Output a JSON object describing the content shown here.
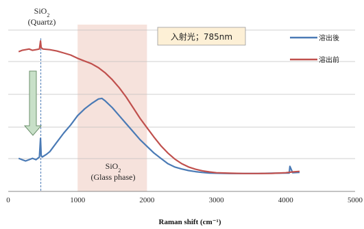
{
  "chart_data": {
    "type": "line",
    "xlabel": "Raman shift (cm⁻¹)",
    "xlim": [
      0,
      5000
    ],
    "x_ticks": [
      "0",
      "1000",
      "2000",
      "3000",
      "4000",
      "5000"
    ],
    "ylim": [
      0,
      1
    ],
    "grid": true,
    "legend_placement": "top-right",
    "excitation_label": "入射光；785nm",
    "annotations": {
      "quartz_top": "SiO",
      "quartz_sub": "2",
      "quartz_phase": "(Quartz)",
      "glass_top": "SiO",
      "glass_sub": "2",
      "glass_phase": "(Glass phase)"
    },
    "shaded_region": [
      1000,
      2000
    ],
    "quartz_line_x": 470,
    "colors": {
      "after": "#4a7ab5",
      "before": "#c0504d",
      "shade": "#f6e2dc",
      "box": "#fdf0d6",
      "arrow": "#c8e0c8"
    },
    "series": [
      {
        "name": "溶出後",
        "color": "#4a7ab5",
        "x": [
          150,
          200,
          250,
          300,
          350,
          400,
          450,
          465,
          475,
          490,
          550,
          600,
          700,
          800,
          900,
          1000,
          1100,
          1200,
          1300,
          1350,
          1400,
          1500,
          1600,
          1700,
          1800,
          1900,
          2000,
          2100,
          2200,
          2300,
          2400,
          2500,
          2600,
          2700,
          2800,
          2900,
          3000,
          3200,
          3400,
          3600,
          3800,
          4000,
          4050,
          4060,
          4100,
          4200
        ],
        "y": [
          0.12,
          0.11,
          0.1,
          0.11,
          0.12,
          0.11,
          0.13,
          0.27,
          0.14,
          0.13,
          0.15,
          0.17,
          0.24,
          0.31,
          0.37,
          0.44,
          0.49,
          0.53,
          0.565,
          0.57,
          0.55,
          0.5,
          0.44,
          0.38,
          0.32,
          0.26,
          0.21,
          0.16,
          0.12,
          0.08,
          0.055,
          0.04,
          0.028,
          0.02,
          0.014,
          0.01,
          0.008,
          0.006,
          0.006,
          0.006,
          0.008,
          0.01,
          0.01,
          0.06,
          0.012,
          0.015
        ]
      },
      {
        "name": "溶出前",
        "color": "#c0504d",
        "x": [
          150,
          200,
          250,
          300,
          350,
          400,
          450,
          465,
          475,
          500,
          600,
          700,
          800,
          900,
          1000,
          1100,
          1200,
          1300,
          1400,
          1500,
          1600,
          1700,
          1800,
          1900,
          2000,
          2100,
          2200,
          2300,
          2400,
          2500,
          2600,
          2700,
          2800,
          2900,
          3000,
          3200,
          3400,
          3600,
          3800,
          4000,
          4100,
          4200
        ],
        "y": [
          0.92,
          0.93,
          0.935,
          0.94,
          0.93,
          0.935,
          0.94,
          1.0,
          0.95,
          0.94,
          0.935,
          0.925,
          0.91,
          0.895,
          0.87,
          0.85,
          0.83,
          0.8,
          0.76,
          0.71,
          0.65,
          0.58,
          0.5,
          0.42,
          0.35,
          0.28,
          0.215,
          0.16,
          0.115,
          0.08,
          0.055,
          0.038,
          0.026,
          0.018,
          0.012,
          0.008,
          0.006,
          0.006,
          0.007,
          0.012,
          0.018,
          0.022
        ]
      }
    ]
  }
}
